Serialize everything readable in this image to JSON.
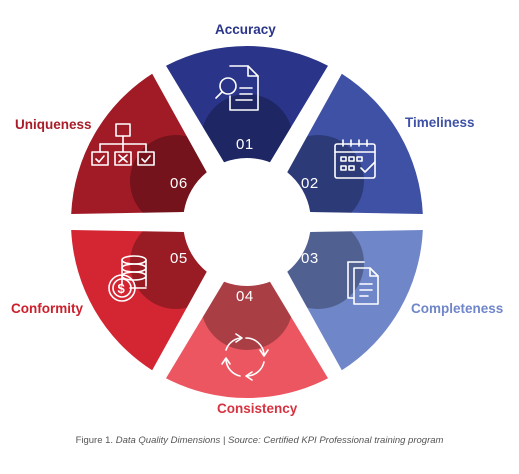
{
  "segments": [
    {
      "id": "accuracy",
      "number": "01",
      "label": "Accuracy",
      "color": "#2a3589",
      "label_color": "#2a3589",
      "icon": "search-document-icon"
    },
    {
      "id": "timeliness",
      "number": "02",
      "label": "Timeliness",
      "color": "#3e51a5",
      "label_color": "#3e51a5",
      "icon": "calendar-icon"
    },
    {
      "id": "completeness",
      "number": "03",
      "label": "Completeness",
      "color": "#6f86c9",
      "label_color": "#6f86c9",
      "icon": "documents-icon"
    },
    {
      "id": "consistency",
      "number": "04",
      "label": "Consistency",
      "color": "#ec5660",
      "label_color": "#d63341",
      "icon": "refresh-cycle-icon"
    },
    {
      "id": "conformity",
      "number": "05",
      "label": "Conformity",
      "color": "#d42632",
      "label_color": "#cc1f2b",
      "icon": "coins-dollar-icon"
    },
    {
      "id": "uniqueness",
      "number": "06",
      "label": "Uniqueness",
      "color": "#a11b26",
      "label_color": "#a81d28",
      "icon": "hierarchy-check-icon"
    }
  ],
  "caption": {
    "prefix": "Figure 1.",
    "text": "Data Quality Dimensions | Source: Certified KPI Professional training program"
  }
}
